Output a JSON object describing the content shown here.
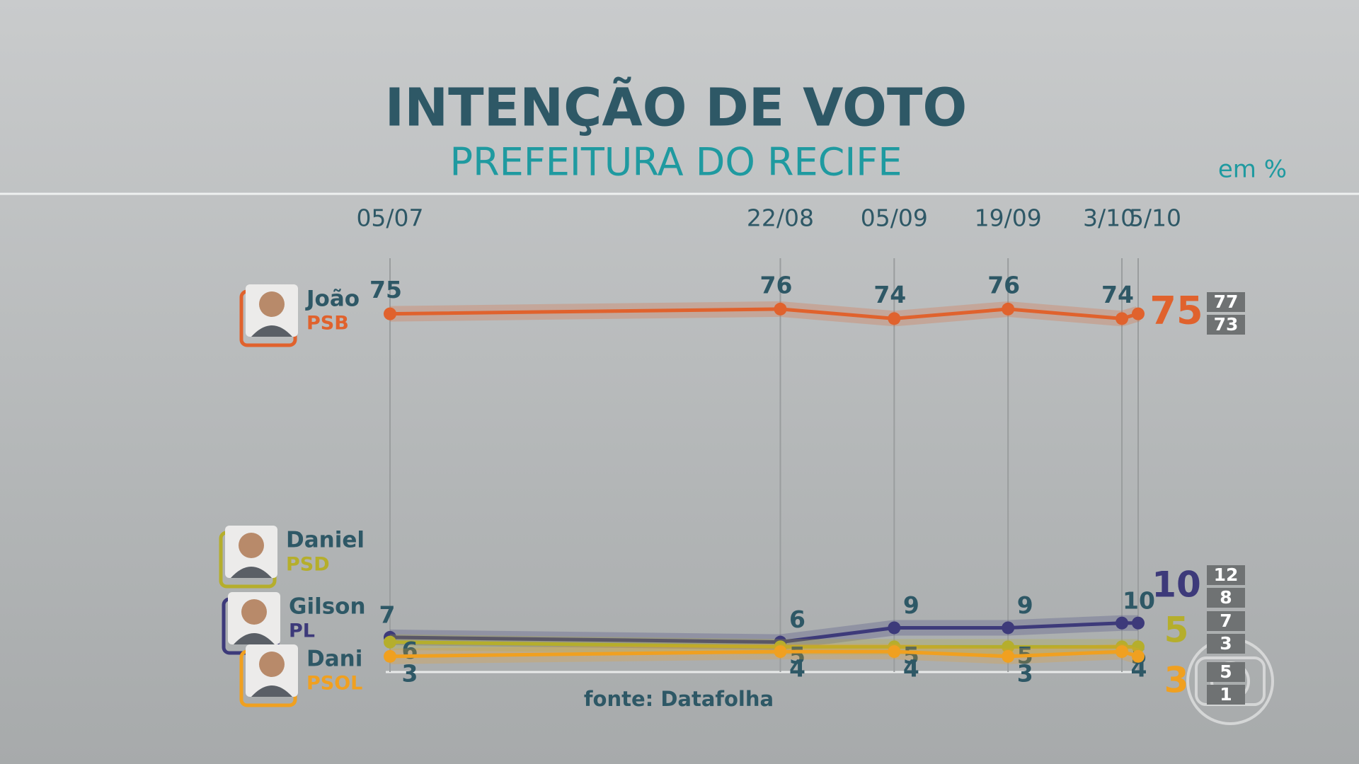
{
  "chart_data": {
    "type": "line",
    "title": "INTENÇÃO DE VOTO",
    "subtitle": "PREFEITURA DO RECIFE",
    "unit_note": "em %",
    "source": "fonte: Datafolha",
    "categories": [
      "05/07",
      "22/08",
      "05/09",
      "19/09",
      "3/10",
      "5/10"
    ],
    "ylim": [
      0,
      80
    ],
    "series": [
      {
        "name": "João",
        "party": "PSB",
        "color": "#e0622d",
        "values": [
          75,
          76,
          74,
          76,
          74,
          75
        ],
        "interval": [
          77,
          73
        ]
      },
      {
        "name": "Gilson",
        "party": "PL",
        "color": "#3d3a7a",
        "values": [
          7,
          6,
          9,
          9,
          10,
          10
        ],
        "interval": [
          12,
          8
        ]
      },
      {
        "name": "Daniel",
        "party": "PSD",
        "color": "#b5ae2c",
        "values": [
          6,
          5,
          5,
          5,
          5,
          5
        ],
        "interval": [
          7,
          3
        ]
      },
      {
        "name": "Dani",
        "party": "PSOL",
        "color": "#f0a020",
        "values": [
          3,
          4,
          4,
          3,
          4,
          3
        ],
        "interval": [
          5,
          1
        ]
      }
    ]
  }
}
